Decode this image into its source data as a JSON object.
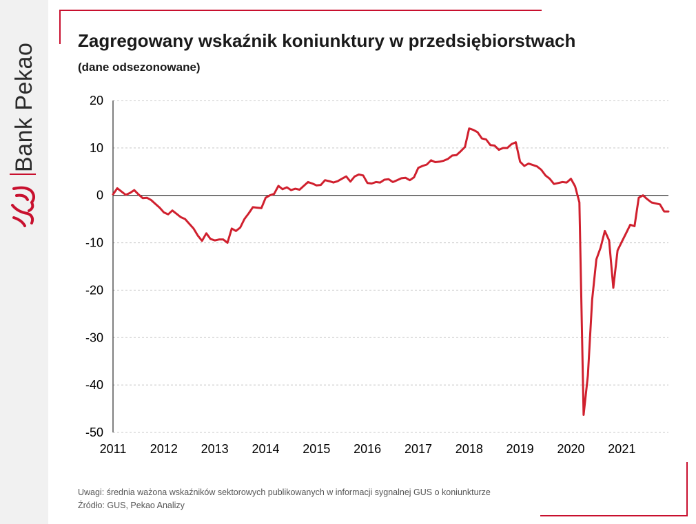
{
  "brand": {
    "name": "Bank Pekao"
  },
  "header": {
    "title": "Zagregowany wskaźnik koniunktury w przedsiębiorstwach",
    "subtitle": "(dane odsezonowane)"
  },
  "notes": {
    "remark": "Uwagi: średnia ważona wskaźników sektorowych publikowanych  w informacji sygnalnej GUS o koniunkturze",
    "source": "Źródło: GUS, Pekao Analizy"
  },
  "colors": {
    "line": "#d0202e",
    "accent": "#c8102e",
    "grid": "#c8c8c8",
    "axis": "#000000"
  },
  "chart_data": {
    "type": "line",
    "title": "Zagregowany wskaźnik koniunktury w przedsiębiorstwach",
    "subtitle": "(dane odsezonowane)",
    "xlabel": "",
    "ylabel": "",
    "ylim": [
      -50,
      20
    ],
    "yticks": [
      20,
      10,
      0,
      -10,
      -20,
      -30,
      -40,
      -50
    ],
    "xlim": [
      "2011-01",
      "2021-12"
    ],
    "xticks": [
      "2011",
      "2012",
      "2013",
      "2014",
      "2015",
      "2016",
      "2017",
      "2018",
      "2019",
      "2020",
      "2021"
    ],
    "grid": "horizontal dashed",
    "zero_line": true,
    "series": [
      {
        "color": "#d0202e",
        "x": [
          "2011-01",
          "2011-02",
          "2011-03",
          "2011-04",
          "2011-05",
          "2011-06",
          "2011-07",
          "2011-08",
          "2011-09",
          "2011-10",
          "2011-11",
          "2011-12",
          "2012-01",
          "2012-02",
          "2012-03",
          "2012-04",
          "2012-05",
          "2012-06",
          "2012-07",
          "2012-08",
          "2012-09",
          "2012-10",
          "2012-11",
          "2012-12",
          "2013-01",
          "2013-02",
          "2013-03",
          "2013-04",
          "2013-05",
          "2013-06",
          "2013-07",
          "2013-08",
          "2013-09",
          "2013-10",
          "2013-11",
          "2013-12",
          "2014-01",
          "2014-02",
          "2014-03",
          "2014-04",
          "2014-05",
          "2014-06",
          "2014-07",
          "2014-08",
          "2014-09",
          "2014-10",
          "2014-11",
          "2014-12",
          "2015-01",
          "2015-02",
          "2015-03",
          "2015-04",
          "2015-05",
          "2015-06",
          "2015-07",
          "2015-08",
          "2015-09",
          "2015-10",
          "2015-11",
          "2015-12",
          "2016-01",
          "2016-02",
          "2016-03",
          "2016-04",
          "2016-05",
          "2016-06",
          "2016-07",
          "2016-08",
          "2016-09",
          "2016-10",
          "2016-11",
          "2016-12",
          "2017-01",
          "2017-02",
          "2017-03",
          "2017-04",
          "2017-05",
          "2017-06",
          "2017-07",
          "2017-08",
          "2017-09",
          "2017-10",
          "2017-11",
          "2017-12",
          "2018-01",
          "2018-02",
          "2018-03",
          "2018-04",
          "2018-05",
          "2018-06",
          "2018-07",
          "2018-08",
          "2018-09",
          "2018-10",
          "2018-11",
          "2018-12",
          "2019-01",
          "2019-02",
          "2019-03",
          "2019-04",
          "2019-05",
          "2019-06",
          "2019-07",
          "2019-08",
          "2019-09",
          "2019-10",
          "2019-11",
          "2019-12",
          "2020-01",
          "2020-02",
          "2020-03",
          "2020-04",
          "2020-05",
          "2020-06",
          "2020-07",
          "2020-08",
          "2020-09",
          "2020-10",
          "2020-11",
          "2020-12",
          "2021-01",
          "2021-02",
          "2021-03",
          "2021-04",
          "2021-05",
          "2021-06",
          "2021-07",
          "2021-08",
          "2021-09",
          "2021-10",
          "2021-11",
          "2021-12"
        ],
        "values": [
          0.2,
          1.5,
          0.8,
          0.1,
          0.5,
          1.1,
          0.2,
          -0.6,
          -0.5,
          -1.0,
          -1.8,
          -2.6,
          -3.6,
          -4.0,
          -3.2,
          -3.9,
          -4.6,
          -5.0,
          -6.0,
          -7.0,
          -8.5,
          -9.6,
          -8.0,
          -9.2,
          -9.5,
          -9.3,
          -9.3,
          -10.0,
          -7.0,
          -7.5,
          -6.8,
          -5.0,
          -3.8,
          -2.5,
          -2.6,
          -2.7,
          -0.5,
          0.0,
          0.3,
          2.0,
          1.3,
          1.7,
          1.1,
          1.4,
          1.2,
          2.0,
          2.8,
          2.5,
          2.1,
          2.2,
          3.2,
          3.0,
          2.7,
          3.0,
          3.5,
          4.0,
          2.9,
          4.0,
          4.4,
          4.2,
          2.6,
          2.5,
          2.8,
          2.7,
          3.3,
          3.4,
          2.8,
          3.2,
          3.6,
          3.7,
          3.2,
          3.8,
          5.8,
          6.2,
          6.5,
          7.4,
          7.0,
          7.1,
          7.3,
          7.7,
          8.4,
          8.5,
          9.3,
          10.2,
          14.1,
          13.8,
          13.3,
          12.0,
          11.8,
          10.6,
          10.5,
          9.6,
          10.0,
          10.0,
          10.8,
          11.2,
          7.1,
          6.2,
          6.7,
          6.4,
          6.1,
          5.4,
          4.2,
          3.5,
          2.4,
          2.6,
          2.8,
          2.7,
          3.5,
          1.9,
          -1.5,
          -46.3,
          -38.0,
          -22.0,
          -13.5,
          -11.0,
          -7.5,
          -9.5,
          -19.5,
          -11.6,
          -9.8,
          -8.0,
          -6.2,
          -6.5,
          -0.5,
          0.0,
          -0.8,
          -1.5,
          -1.7,
          -1.9,
          -3.4,
          -3.4
        ]
      }
    ]
  }
}
